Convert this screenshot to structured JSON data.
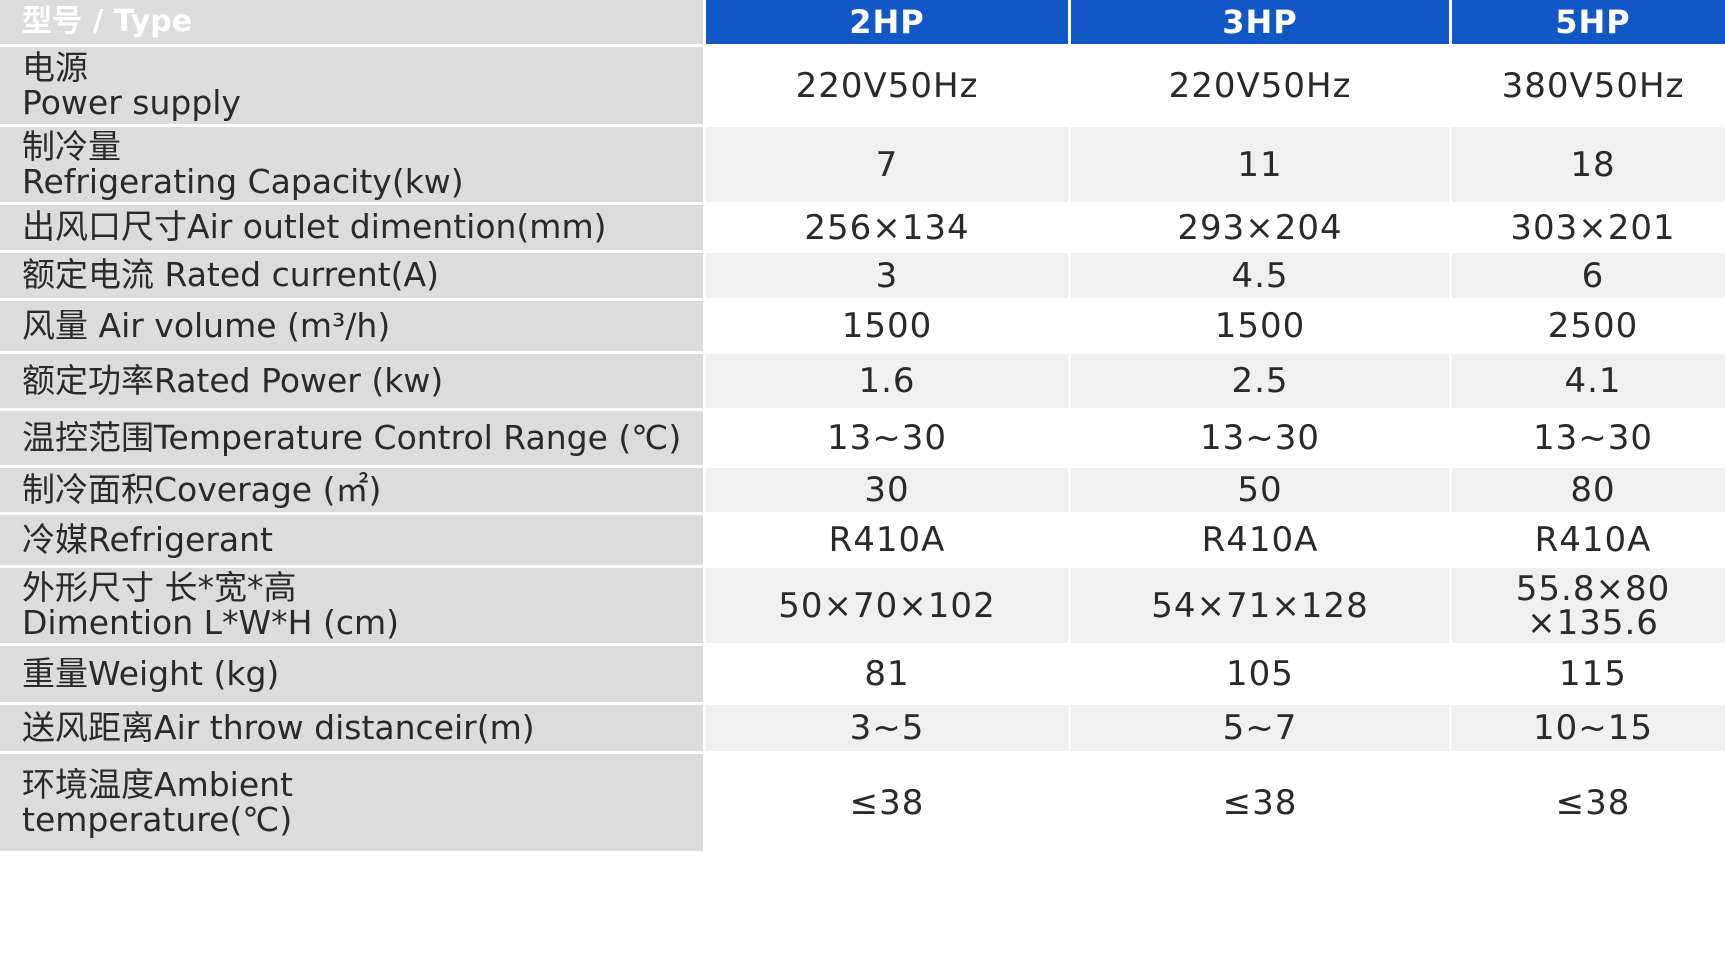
{
  "header": {
    "type_label": "型号 / Type",
    "models": [
      "2HP",
      "3HP",
      "5HP"
    ]
  },
  "rows": [
    {
      "label": [
        "电源",
        "Power supply"
      ],
      "values": [
        "220V50Hz",
        "220V50Hz",
        "380V50Hz"
      ]
    },
    {
      "label": [
        "制冷量",
        "Refrigerating Capacity(kw)"
      ],
      "values": [
        "7",
        "11",
        "18"
      ]
    },
    {
      "label": [
        "出风口尺寸Air outlet dimention(mm)"
      ],
      "values": [
        "256×134",
        "293×204",
        "303×201"
      ]
    },
    {
      "label": [
        "额定电流 Rated current(A)"
      ],
      "values": [
        "3",
        "4.5",
        "6"
      ]
    },
    {
      "label": [
        "风量 Air volume (m³/h)"
      ],
      "values": [
        "1500",
        "1500",
        "2500"
      ]
    },
    {
      "label": [
        "额定功率Rated Power (kw)"
      ],
      "values": [
        "1.6",
        "2.5",
        "4.1"
      ]
    },
    {
      "label": [
        "温控范围Temperature Control Range (℃)"
      ],
      "values": [
        "13~30",
        "13~30",
        "13~30"
      ]
    },
    {
      "label": [
        "制冷面积Coverage (㎡)"
      ],
      "values": [
        "30",
        "50",
        "80"
      ]
    },
    {
      "label": [
        "冷媒Refrigerant"
      ],
      "values": [
        "R410A",
        "R410A",
        "R410A"
      ]
    },
    {
      "label": [
        "外形尺寸 长*宽*高",
        "Dimention L*W*H (cm)"
      ],
      "values": [
        "50×70×102",
        "54×71×128",
        "55.8×80\n×135.6"
      ]
    },
    {
      "label": [
        "重量Weight (kg)"
      ],
      "values": [
        "81",
        "105",
        "115"
      ]
    },
    {
      "label": [
        "送风距离Air throw distanceir(m)"
      ],
      "values": [
        "3~5",
        "5~7",
        "10~15"
      ]
    },
    {
      "label": [
        "环境温度Ambient",
        "temperature(℃)"
      ],
      "values": [
        "≤38",
        "≤38",
        "≤38"
      ]
    }
  ],
  "colors": {
    "header_bg": "#1157c5",
    "label_bg": "#dcdcdc",
    "alt_row_bg": "#f0f0f0",
    "text": "#2a2a2a"
  }
}
